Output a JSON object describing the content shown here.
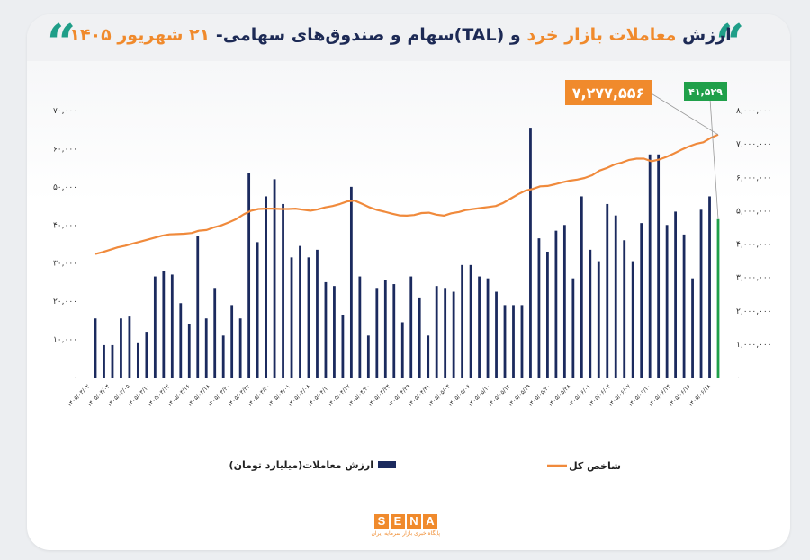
{
  "title": {
    "part1": "ارزش",
    "part2": "معاملات بازار خرد",
    "part3": "و (TAL)سهام و صندوق‌های سهامی-",
    "part4": "۲۱ شهریور ۱۴۰۵"
  },
  "quote_glyph": "“",
  "logo": {
    "letters": [
      "S",
      "E",
      "N",
      "A"
    ],
    "tagline": "پایگاه خبری بازار سرمایه ایران"
  },
  "chart_data": {
    "type": "bar",
    "left_axis": {
      "ticks": [
        "۰",
        "۱۰,۰۰۰",
        "۲۰,۰۰۰",
        "۳۰,۰۰۰",
        "۴۰,۰۰۰",
        "۵۰,۰۰۰",
        "۶۰,۰۰۰",
        "۷۰,۰۰۰"
      ],
      "ylim": [
        0,
        70000
      ]
    },
    "right_axis": {
      "ticks": [
        "۰",
        "۱,۰۰۰,۰۰۰",
        "۲,۰۰۰,۰۰۰",
        "۳,۰۰۰,۰۰۰",
        "۴,۰۰۰,۰۰۰",
        "۵,۰۰۰,۰۰۰",
        "۶,۰۰۰,۰۰۰",
        "۷,۰۰۰,۰۰۰",
        "۸,۰۰۰,۰۰۰"
      ],
      "ylim": [
        0,
        8000000
      ]
    },
    "x_tick_labels": [
      "۱۴۰۵/۰۳/۰۲",
      "۱۴۰۵/۰۳/۰۴",
      "۱۴۰۵/۰۳/۰۵",
      "۱۴۰۵/۰۳/۱۰",
      "۱۴۰۵/۰۳/۱۲",
      "۱۴۰۵/۰۳/۱۶",
      "۱۴۰۵/۰۳/۱۸",
      "۱۴۰۵/۰۳/۲۰",
      "۱۴۰۵/۰۳/۲۴",
      "۱۴۰۵/۰۳/۳۰",
      "۱۴۰۵/۰۴/۰۱",
      "۱۴۰۵/۰۴/۰۸",
      "۱۴۰۵/۰۴/۱۰",
      "۱۴۰۵/۰۴/۱۷",
      "۱۴۰۵/۰۴/۲۰",
      "۱۴۰۵/۰۴/۲۴",
      "۱۴۰۵/۰۴/۲۹",
      "۱۴۰۵/۰۴/۳۱",
      "۱۴۰۵/۰۵/۰۴",
      "۱۴۰۵/۰۵/۰۶",
      "۱۴۰۵/۰۵/۱۰",
      "۱۴۰۵/۰۵/۱۳",
      "۱۴۰۵/۰۵/۱۹",
      "۱۴۰۵/۰۵/۲۰",
      "۱۴۰۵/۰۵/۲۸",
      "۱۴۰۵/۰۶/۰۱",
      "۱۴۰۵/۰۶/۰۴",
      "۱۴۰۵/۰۶/۰۷",
      "۱۴۰۵/۰۶/۱۰",
      "۱۴۰۵/۰۶/۱۴",
      "۱۴۰۵/۰۶/۱۶",
      "۱۴۰۵/۰۶/۱۸"
    ],
    "bars": {
      "name": "ارزش معاملات(میلیارد تومان)",
      "color": "#1b2a5e",
      "last_color": "#20a04a",
      "values": [
        15500,
        8500,
        8500,
        15500,
        16000,
        9000,
        12000,
        26500,
        28000,
        27000,
        19500,
        14000,
        37000,
        15500,
        23500,
        11000,
        19000,
        15500,
        53500,
        35500,
        47500,
        52000,
        45500,
        31500,
        34500,
        31500,
        33500,
        25000,
        24000,
        16500,
        50000,
        26500,
        11000,
        23500,
        25500,
        24500,
        14500,
        26500,
        21000,
        11000,
        24000,
        23500,
        22500,
        29500,
        29500,
        26500,
        26000,
        22500,
        19000,
        19000,
        19000,
        65500,
        36500,
        33000,
        38500,
        40000,
        26000,
        47500,
        33500,
        30500,
        45500,
        42500,
        36000,
        30500,
        40500,
        58500,
        58500,
        40000,
        43500,
        37500,
        26000,
        44000,
        47500,
        41529
      ],
      "last_label": "۴۱,۵۲۹"
    },
    "line": {
      "name": "شاخص کل",
      "color": "#f08a3c",
      "values": [
        3700000,
        3760000,
        3830000,
        3900000,
        3950000,
        4010000,
        4070000,
        4130000,
        4190000,
        4250000,
        4290000,
        4300000,
        4310000,
        4330000,
        4400000,
        4420000,
        4500000,
        4560000,
        4650000,
        4750000,
        4890000,
        5000000,
        5050000,
        5060000,
        5060000,
        5050000,
        5050000,
        5060000,
        5030000,
        5000000,
        5040000,
        5100000,
        5140000,
        5200000,
        5280000,
        5300000,
        5200000,
        5100000,
        5020000,
        4970000,
        4910000,
        4860000,
        4850000,
        4870000,
        4930000,
        4940000,
        4880000,
        4850000,
        4920000,
        4960000,
        5020000,
        5050000,
        5080000,
        5110000,
        5140000,
        5230000,
        5360000,
        5490000,
        5600000,
        5650000,
        5730000,
        5740000,
        5790000,
        5850000,
        5900000,
        5930000,
        5980000,
        6060000,
        6200000,
        6280000,
        6380000,
        6440000,
        6520000,
        6560000,
        6560000,
        6480000,
        6530000,
        6610000,
        6710000,
        6820000,
        6920000,
        7000000,
        7050000,
        7180000,
        7277556
      ],
      "last_label": "۷,۲۷۷,۵۵۶"
    },
    "legend": {
      "placement": "bottom"
    }
  }
}
